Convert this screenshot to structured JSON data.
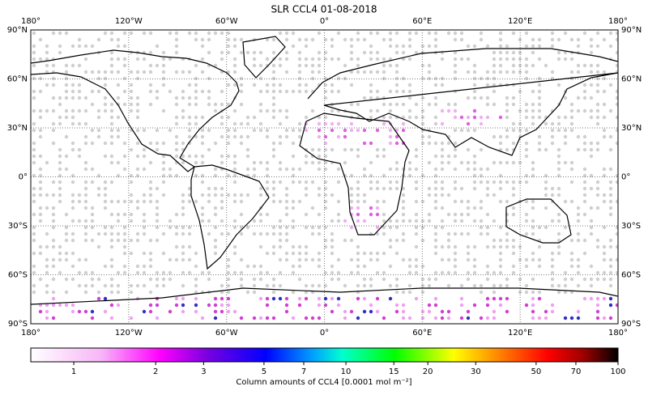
{
  "chart_data": {
    "type": "map",
    "title": "SLR CCL4 01-08-2018",
    "xlim": [
      -180,
      180
    ],
    "ylim": [
      -90,
      90
    ],
    "xticks": [
      {
        "value": -180,
        "label": "180°"
      },
      {
        "value": -120,
        "label": "120°W"
      },
      {
        "value": -60,
        "label": "60°W"
      },
      {
        "value": 0,
        "label": "0°"
      },
      {
        "value": 60,
        "label": "60°E"
      },
      {
        "value": 120,
        "label": "120°E"
      },
      {
        "value": 180,
        "label": "180°"
      }
    ],
    "yticks": [
      {
        "value": 90,
        "label": "90°N"
      },
      {
        "value": 60,
        "label": "60°N"
      },
      {
        "value": 30,
        "label": "30°N"
      },
      {
        "value": 0,
        "label": "0°"
      },
      {
        "value": -30,
        "label": "30°S"
      },
      {
        "value": -60,
        "label": "60°S"
      },
      {
        "value": -90,
        "label": "90°S"
      }
    ],
    "grid": true,
    "colorbar": {
      "label": "Column amounts of CCL4 [0.0001 mol m⁻²]",
      "log": true,
      "lim": [
        0.695,
        100
      ],
      "ticks": [
        1,
        2,
        3,
        5,
        7,
        10,
        15,
        20,
        30,
        50,
        70,
        100
      ]
    }
  }
}
